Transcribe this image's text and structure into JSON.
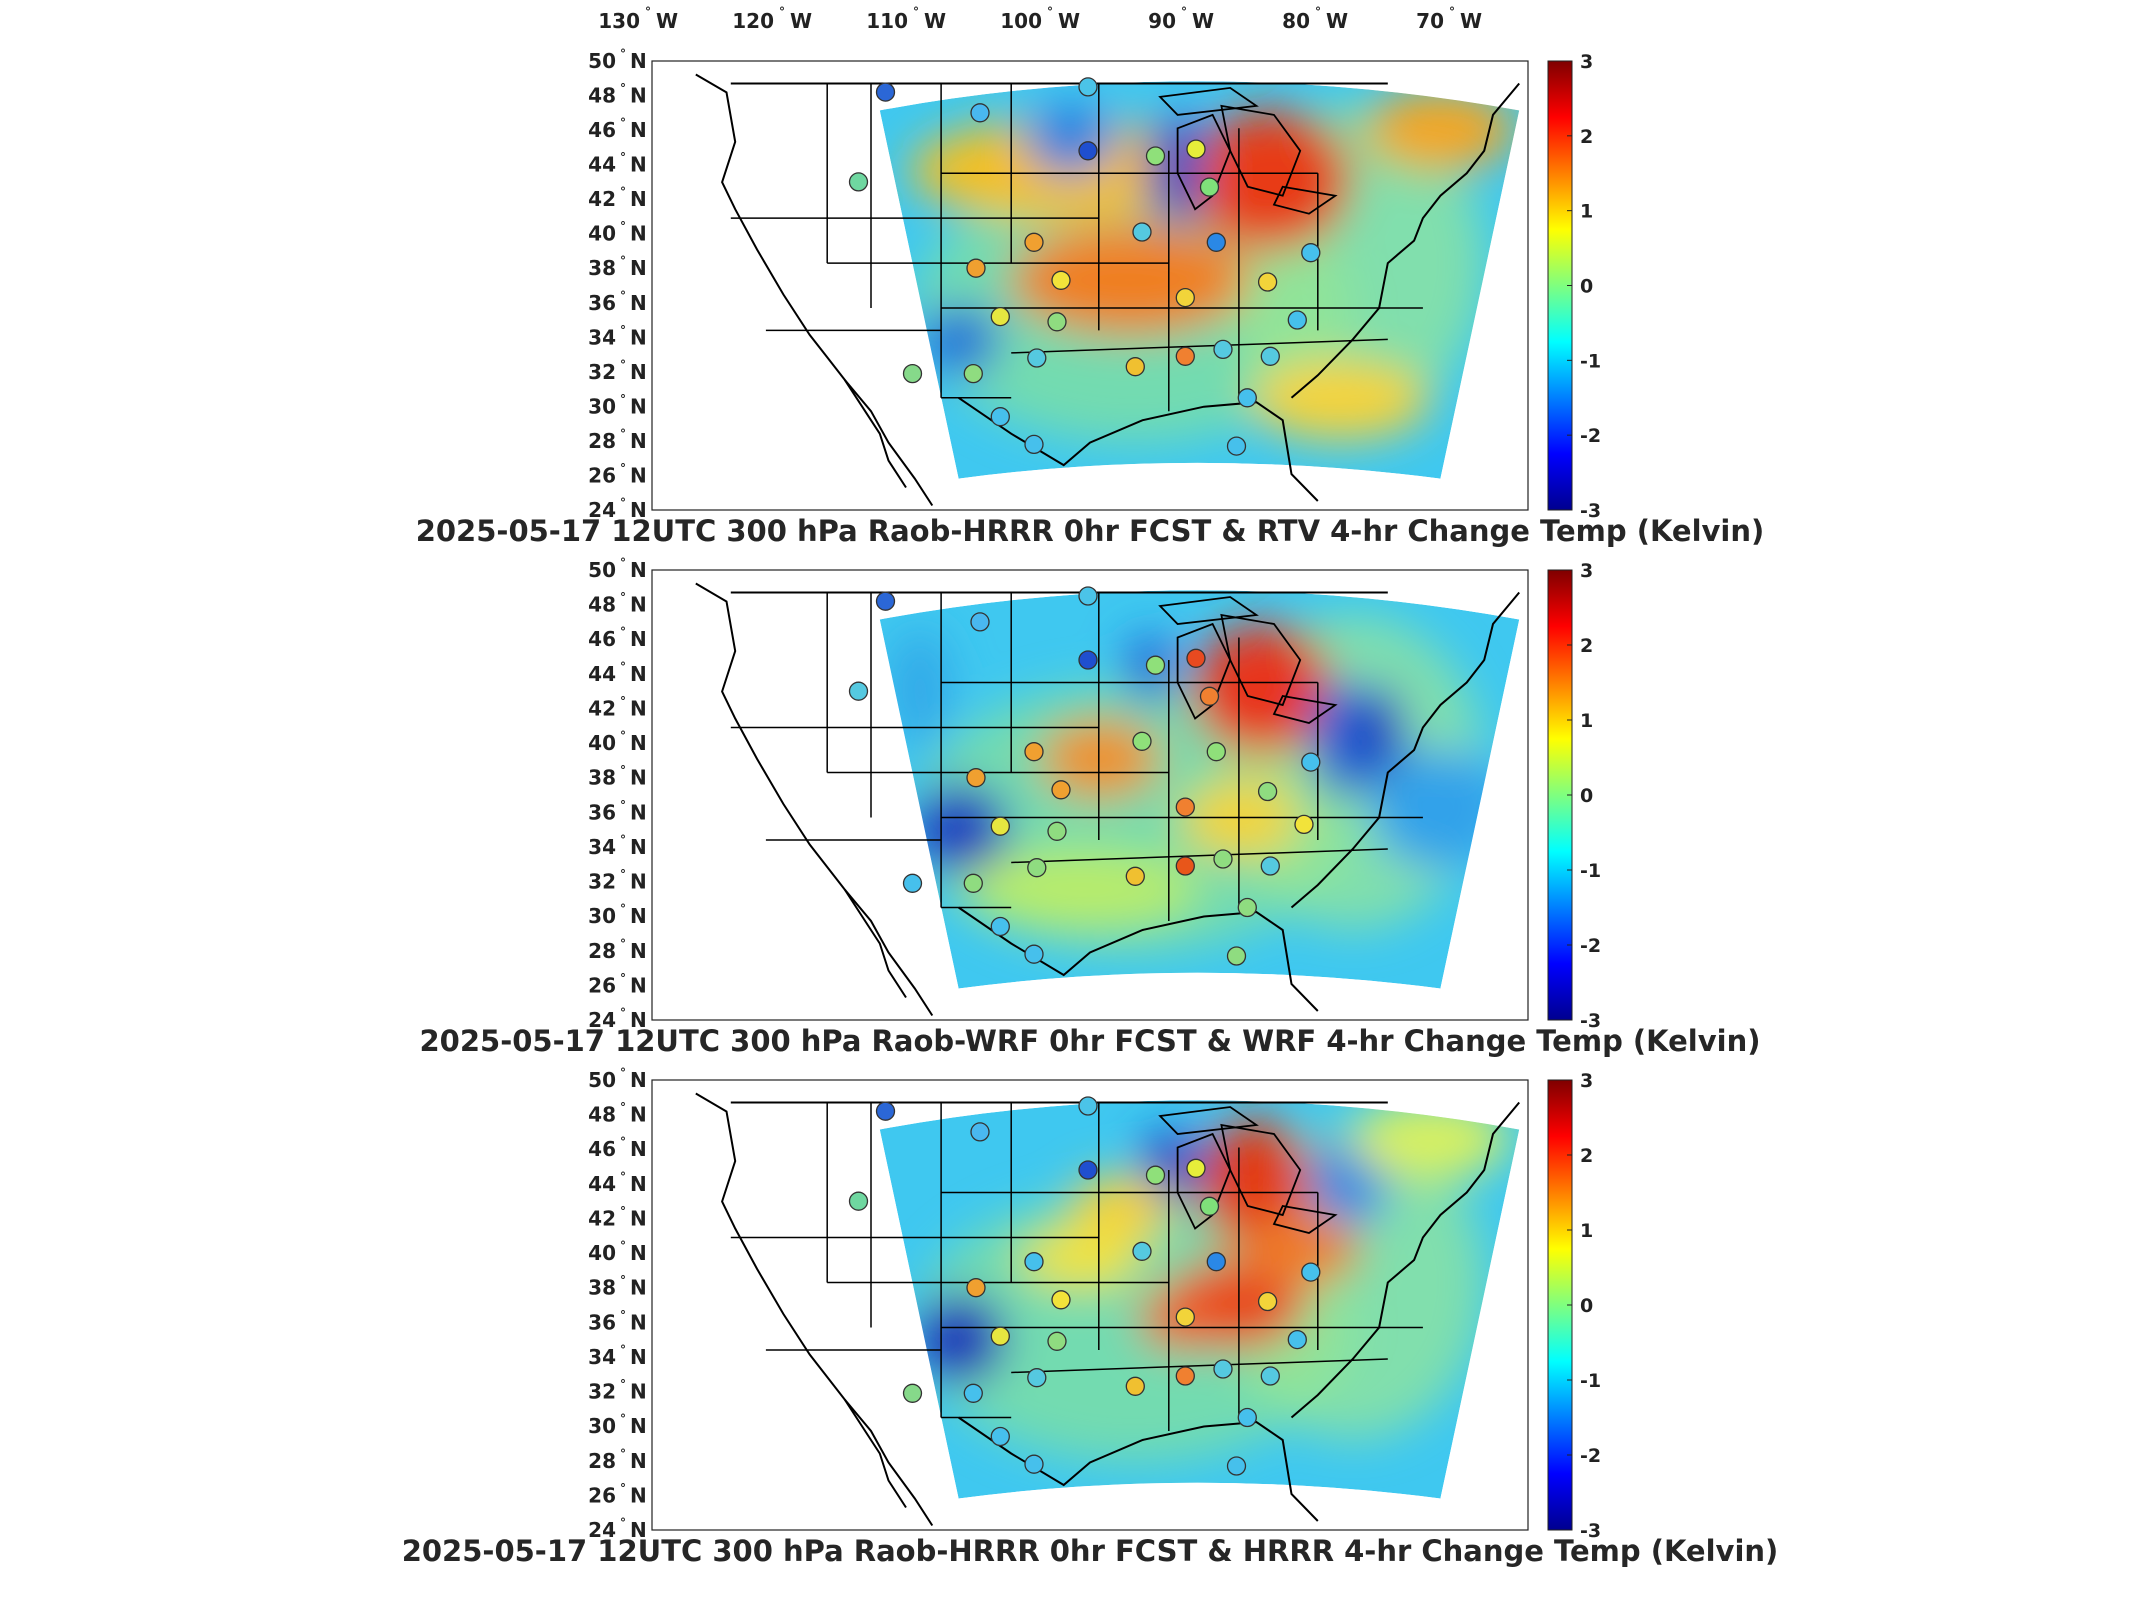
{
  "lon_labels": [
    {
      "deg": "130",
      "dir": "W"
    },
    {
      "deg": "120",
      "dir": "W"
    },
    {
      "deg": "110",
      "dir": "W"
    },
    {
      "deg": "100",
      "dir": "W"
    },
    {
      "deg": "90",
      "dir": "W"
    },
    {
      "deg": "80",
      "dir": "W"
    },
    {
      "deg": "70",
      "dir": "W"
    }
  ],
  "lat_labels": [
    {
      "deg": "50",
      "dir": "N"
    },
    {
      "deg": "48",
      "dir": "N"
    },
    {
      "deg": "46",
      "dir": "N"
    },
    {
      "deg": "44",
      "dir": "N"
    },
    {
      "deg": "42",
      "dir": "N"
    },
    {
      "deg": "40",
      "dir": "N"
    },
    {
      "deg": "38",
      "dir": "N"
    },
    {
      "deg": "36",
      "dir": "N"
    },
    {
      "deg": "34",
      "dir": "N"
    },
    {
      "deg": "32",
      "dir": "N"
    },
    {
      "deg": "30",
      "dir": "N"
    },
    {
      "deg": "28",
      "dir": "N"
    },
    {
      "deg": "26",
      "dir": "N"
    },
    {
      "deg": "24",
      "dir": "N"
    }
  ],
  "colorbar": {
    "ticks": [
      "3",
      "2",
      "1",
      "0",
      "-1",
      "-2",
      "-3"
    ],
    "colors": [
      "#7f0000",
      "#ff0000",
      "#ff7f00",
      "#ffff00",
      "#7fff7f",
      "#00ffff",
      "#007fff",
      "#0000ff",
      "#00008f"
    ]
  },
  "panels": [
    {
      "title": "2025-05-17 12UTC 300 hPa Raob-HRRR 0hr FCST & RTV 4-hr Change Temp (Kelvin)",
      "blobs": [
        {
          "cx": 1270,
          "cy": 180,
          "rx": 80,
          "ry": 70,
          "color": "#e83a14"
        },
        {
          "cx": 1130,
          "cy": 280,
          "rx": 120,
          "ry": 55,
          "color": "#f07f22"
        },
        {
          "cx": 1060,
          "cy": 170,
          "rx": 150,
          "ry": 50,
          "color": "#f5c020"
        },
        {
          "cx": 960,
          "cy": 340,
          "rx": 40,
          "ry": 35,
          "color": "#1e6fd8"
        },
        {
          "cx": 1175,
          "cy": 170,
          "rx": 28,
          "ry": 55,
          "color": "#1b49c6"
        },
        {
          "cx": 1440,
          "cy": 130,
          "rx": 75,
          "ry": 40,
          "color": "#f5a623"
        },
        {
          "cx": 1340,
          "cy": 400,
          "rx": 90,
          "ry": 40,
          "color": "#f6d33b"
        },
        {
          "cx": 1070,
          "cy": 140,
          "rx": 45,
          "ry": 35,
          "color": "#2a7fe0"
        }
      ],
      "stations": [
        {
          "lon": -108.5,
          "lat": 48.2,
          "color": "#2b67d6"
        },
        {
          "lon": -101.5,
          "lat": 47.0,
          "color": "#49b8f0"
        },
        {
          "lon": -93.5,
          "lat": 48.5,
          "color": "#4bc4e8"
        },
        {
          "lon": -93.5,
          "lat": 44.8,
          "color": "#1f4fcf"
        },
        {
          "lon": -88.5,
          "lat": 44.5,
          "color": "#8fe07a"
        },
        {
          "lon": -85.5,
          "lat": 44.9,
          "color": "#e6ee3a"
        },
        {
          "lon": -84.5,
          "lat": 42.7,
          "color": "#7fe07a"
        },
        {
          "lon": -110.5,
          "lat": 43.0,
          "color": "#6fd7a0"
        },
        {
          "lon": -97.5,
          "lat": 39.5,
          "color": "#f0a030"
        },
        {
          "lon": -101.8,
          "lat": 38.0,
          "color": "#f0a030"
        },
        {
          "lon": -95.5,
          "lat": 37.3,
          "color": "#f2e33a"
        },
        {
          "lon": -89.5,
          "lat": 40.1,
          "color": "#55c9e0"
        },
        {
          "lon": -84.0,
          "lat": 39.5,
          "color": "#2a88e6"
        },
        {
          "lon": -86.3,
          "lat": 36.3,
          "color": "#f2d43a"
        },
        {
          "lon": -100.0,
          "lat": 35.2,
          "color": "#e6e640"
        },
        {
          "lon": -95.8,
          "lat": 34.9,
          "color": "#8fdc80"
        },
        {
          "lon": -97.3,
          "lat": 32.8,
          "color": "#55c9e0"
        },
        {
          "lon": -90.0,
          "lat": 32.3,
          "color": "#f0c030"
        },
        {
          "lon": -86.3,
          "lat": 32.9,
          "color": "#f08030"
        },
        {
          "lon": -83.5,
          "lat": 33.3,
          "color": "#55c9e0"
        },
        {
          "lon": -80.0,
          "lat": 32.9,
          "color": "#55c9e0"
        },
        {
          "lon": -106.5,
          "lat": 31.9,
          "color": "#86d98a"
        },
        {
          "lon": -102.0,
          "lat": 31.9,
          "color": "#8fdc80"
        },
        {
          "lon": -100.0,
          "lat": 29.4,
          "color": "#46c0ec"
        },
        {
          "lon": -97.5,
          "lat": 27.8,
          "color": "#46c0ec"
        },
        {
          "lon": -82.5,
          "lat": 27.7,
          "color": "#46c0ec"
        },
        {
          "lon": -81.7,
          "lat": 30.5,
          "color": "#46c0ec"
        },
        {
          "lon": -78.0,
          "lat": 35.0,
          "color": "#46c0ec"
        },
        {
          "lon": -77.0,
          "lat": 38.9,
          "color": "#46c0ec"
        },
        {
          "lon": -80.2,
          "lat": 37.2,
          "color": "#f2d43a"
        }
      ]
    },
    {
      "title": "2025-05-17 12UTC 300 hPa Raob-WRF 0hr FCST & WRF 4-hr Change Temp (Kelvin)",
      "blobs": [
        {
          "cx": 1262,
          "cy": 180,
          "rx": 70,
          "ry": 65,
          "color": "#e8361a"
        },
        {
          "cx": 1100,
          "cy": 250,
          "rx": 60,
          "ry": 40,
          "color": "#f0902a"
        },
        {
          "cx": 960,
          "cy": 320,
          "rx": 48,
          "ry": 45,
          "color": "#1c3fbf"
        },
        {
          "cx": 1340,
          "cy": 230,
          "rx": 30,
          "ry": 60,
          "color": "#2466d6"
        },
        {
          "cx": 1380,
          "cy": 230,
          "rx": 25,
          "ry": 55,
          "color": "#1d3fc0"
        },
        {
          "cx": 1440,
          "cy": 300,
          "rx": 70,
          "ry": 60,
          "color": "#31a2ea"
        },
        {
          "cx": 1150,
          "cy": 160,
          "rx": 25,
          "ry": 35,
          "color": "#2866d8"
        },
        {
          "cx": 1240,
          "cy": 310,
          "rx": 60,
          "ry": 40,
          "color": "#f2d43a"
        },
        {
          "cx": 1080,
          "cy": 380,
          "rx": 120,
          "ry": 40,
          "color": "#b8ec6a"
        },
        {
          "cx": 920,
          "cy": 180,
          "rx": 30,
          "ry": 60,
          "color": "#33a8e8"
        }
      ],
      "stations": [
        {
          "lon": -108.5,
          "lat": 48.2,
          "color": "#2b67d6"
        },
        {
          "lon": -101.5,
          "lat": 47.0,
          "color": "#49b8f0"
        },
        {
          "lon": -93.5,
          "lat": 48.5,
          "color": "#4bc4e8"
        },
        {
          "lon": -93.5,
          "lat": 44.8,
          "color": "#1f4fcf"
        },
        {
          "lon": -88.5,
          "lat": 44.5,
          "color": "#8fe07a"
        },
        {
          "lon": -85.5,
          "lat": 44.9,
          "color": "#e84a20"
        },
        {
          "lon": -84.5,
          "lat": 42.7,
          "color": "#f08030"
        },
        {
          "lon": -110.5,
          "lat": 43.0,
          "color": "#55c9e0"
        },
        {
          "lon": -97.5,
          "lat": 39.5,
          "color": "#f0a030"
        },
        {
          "lon": -101.8,
          "lat": 38.0,
          "color": "#f0a030"
        },
        {
          "lon": -95.5,
          "lat": 37.3,
          "color": "#f0a030"
        },
        {
          "lon": -89.5,
          "lat": 40.1,
          "color": "#8fe07a"
        },
        {
          "lon": -84.0,
          "lat": 39.5,
          "color": "#8fe07a"
        },
        {
          "lon": -86.3,
          "lat": 36.3,
          "color": "#f08030"
        },
        {
          "lon": -100.0,
          "lat": 35.2,
          "color": "#e6e640"
        },
        {
          "lon": -95.8,
          "lat": 34.9,
          "color": "#8fdc80"
        },
        {
          "lon": -97.3,
          "lat": 32.8,
          "color": "#8fdc80"
        },
        {
          "lon": -90.0,
          "lat": 32.3,
          "color": "#f0c030"
        },
        {
          "lon": -86.3,
          "lat": 32.9,
          "color": "#e8561a"
        },
        {
          "lon": -83.5,
          "lat": 33.3,
          "color": "#8fdc80"
        },
        {
          "lon": -80.0,
          "lat": 32.9,
          "color": "#55c9e0"
        },
        {
          "lon": -106.5,
          "lat": 31.9,
          "color": "#46c0ec"
        },
        {
          "lon": -102.0,
          "lat": 31.9,
          "color": "#8fdc80"
        },
        {
          "lon": -100.0,
          "lat": 29.4,
          "color": "#46c0ec"
        },
        {
          "lon": -97.5,
          "lat": 27.8,
          "color": "#46c0ec"
        },
        {
          "lon": -82.5,
          "lat": 27.7,
          "color": "#8fdc80"
        },
        {
          "lon": -81.7,
          "lat": 30.5,
          "color": "#8fdc80"
        },
        {
          "lon": -77.5,
          "lat": 35.3,
          "color": "#f2e33a"
        },
        {
          "lon": -77.0,
          "lat": 38.9,
          "color": "#46c0ec"
        },
        {
          "lon": -80.2,
          "lat": 37.2,
          "color": "#8fdc80"
        }
      ]
    },
    {
      "title": "2025-05-17 12UTC 300 hPa Raob-HRRR 0hr FCST & HRRR 4-hr Change Temp (Kelvin)",
      "blobs": [
        {
          "cx": 1255,
          "cy": 165,
          "rx": 55,
          "ry": 65,
          "color": "#e33a14"
        },
        {
          "cx": 1235,
          "cy": 285,
          "rx": 70,
          "ry": 45,
          "color": "#e8471c"
        },
        {
          "cx": 1300,
          "cy": 230,
          "rx": 60,
          "ry": 35,
          "color": "#f07a26"
        },
        {
          "cx": 1180,
          "cy": 300,
          "rx": 40,
          "ry": 30,
          "color": "#f05a22"
        },
        {
          "cx": 960,
          "cy": 320,
          "rx": 45,
          "ry": 45,
          "color": "#1b36b8"
        },
        {
          "cx": 1170,
          "cy": 150,
          "rx": 30,
          "ry": 40,
          "color": "#1b49c6"
        },
        {
          "cx": 1350,
          "cy": 160,
          "rx": 40,
          "ry": 45,
          "color": "#2a88e6"
        },
        {
          "cx": 1120,
          "cy": 190,
          "rx": 50,
          "ry": 35,
          "color": "#f5d23a"
        },
        {
          "cx": 1080,
          "cy": 240,
          "rx": 60,
          "ry": 30,
          "color": "#f2e33a"
        },
        {
          "cx": 1430,
          "cy": 120,
          "rx": 80,
          "ry": 40,
          "color": "#d8f060"
        }
      ],
      "stations": [
        {
          "lon": -108.5,
          "lat": 48.2,
          "color": "#2b67d6"
        },
        {
          "lon": -101.5,
          "lat": 47.0,
          "color": "#49b8f0"
        },
        {
          "lon": -93.5,
          "lat": 48.5,
          "color": "#4bc4e8"
        },
        {
          "lon": -93.5,
          "lat": 44.8,
          "color": "#1f4fcf"
        },
        {
          "lon": -88.5,
          "lat": 44.5,
          "color": "#8fe07a"
        },
        {
          "lon": -85.5,
          "lat": 44.9,
          "color": "#e6ee3a"
        },
        {
          "lon": -84.5,
          "lat": 42.7,
          "color": "#7fe07a"
        },
        {
          "lon": -110.5,
          "lat": 43.0,
          "color": "#6fd7a0"
        },
        {
          "lon": -97.5,
          "lat": 39.5,
          "color": "#46c0ec"
        },
        {
          "lon": -101.8,
          "lat": 38.0,
          "color": "#f0a030"
        },
        {
          "lon": -95.5,
          "lat": 37.3,
          "color": "#f2e33a"
        },
        {
          "lon": -89.5,
          "lat": 40.1,
          "color": "#55c9e0"
        },
        {
          "lon": -84.0,
          "lat": 39.5,
          "color": "#2a88e6"
        },
        {
          "lon": -86.3,
          "lat": 36.3,
          "color": "#f2d43a"
        },
        {
          "lon": -100.0,
          "lat": 35.2,
          "color": "#e6e640"
        },
        {
          "lon": -95.8,
          "lat": 34.9,
          "color": "#8fdc80"
        },
        {
          "lon": -97.3,
          "lat": 32.8,
          "color": "#55c9e0"
        },
        {
          "lon": -90.0,
          "lat": 32.3,
          "color": "#f0c030"
        },
        {
          "lon": -86.3,
          "lat": 32.9,
          "color": "#f08030"
        },
        {
          "lon": -83.5,
          "lat": 33.3,
          "color": "#55c9e0"
        },
        {
          "lon": -80.0,
          "lat": 32.9,
          "color": "#55c9e0"
        },
        {
          "lon": -106.5,
          "lat": 31.9,
          "color": "#86d98a"
        },
        {
          "lon": -102.0,
          "lat": 31.9,
          "color": "#46c0ec"
        },
        {
          "lon": -100.0,
          "lat": 29.4,
          "color": "#46c0ec"
        },
        {
          "lon": -97.5,
          "lat": 27.8,
          "color": "#46c0ec"
        },
        {
          "lon": -82.5,
          "lat": 27.7,
          "color": "#46c0ec"
        },
        {
          "lon": -81.7,
          "lat": 30.5,
          "color": "#46c0ec"
        },
        {
          "lon": -78.0,
          "lat": 35.0,
          "color": "#46c0ec"
        },
        {
          "lon": -77.0,
          "lat": 38.9,
          "color": "#46c0ec"
        },
        {
          "lon": -80.2,
          "lat": 37.2,
          "color": "#f2d43a"
        }
      ]
    }
  ]
}
